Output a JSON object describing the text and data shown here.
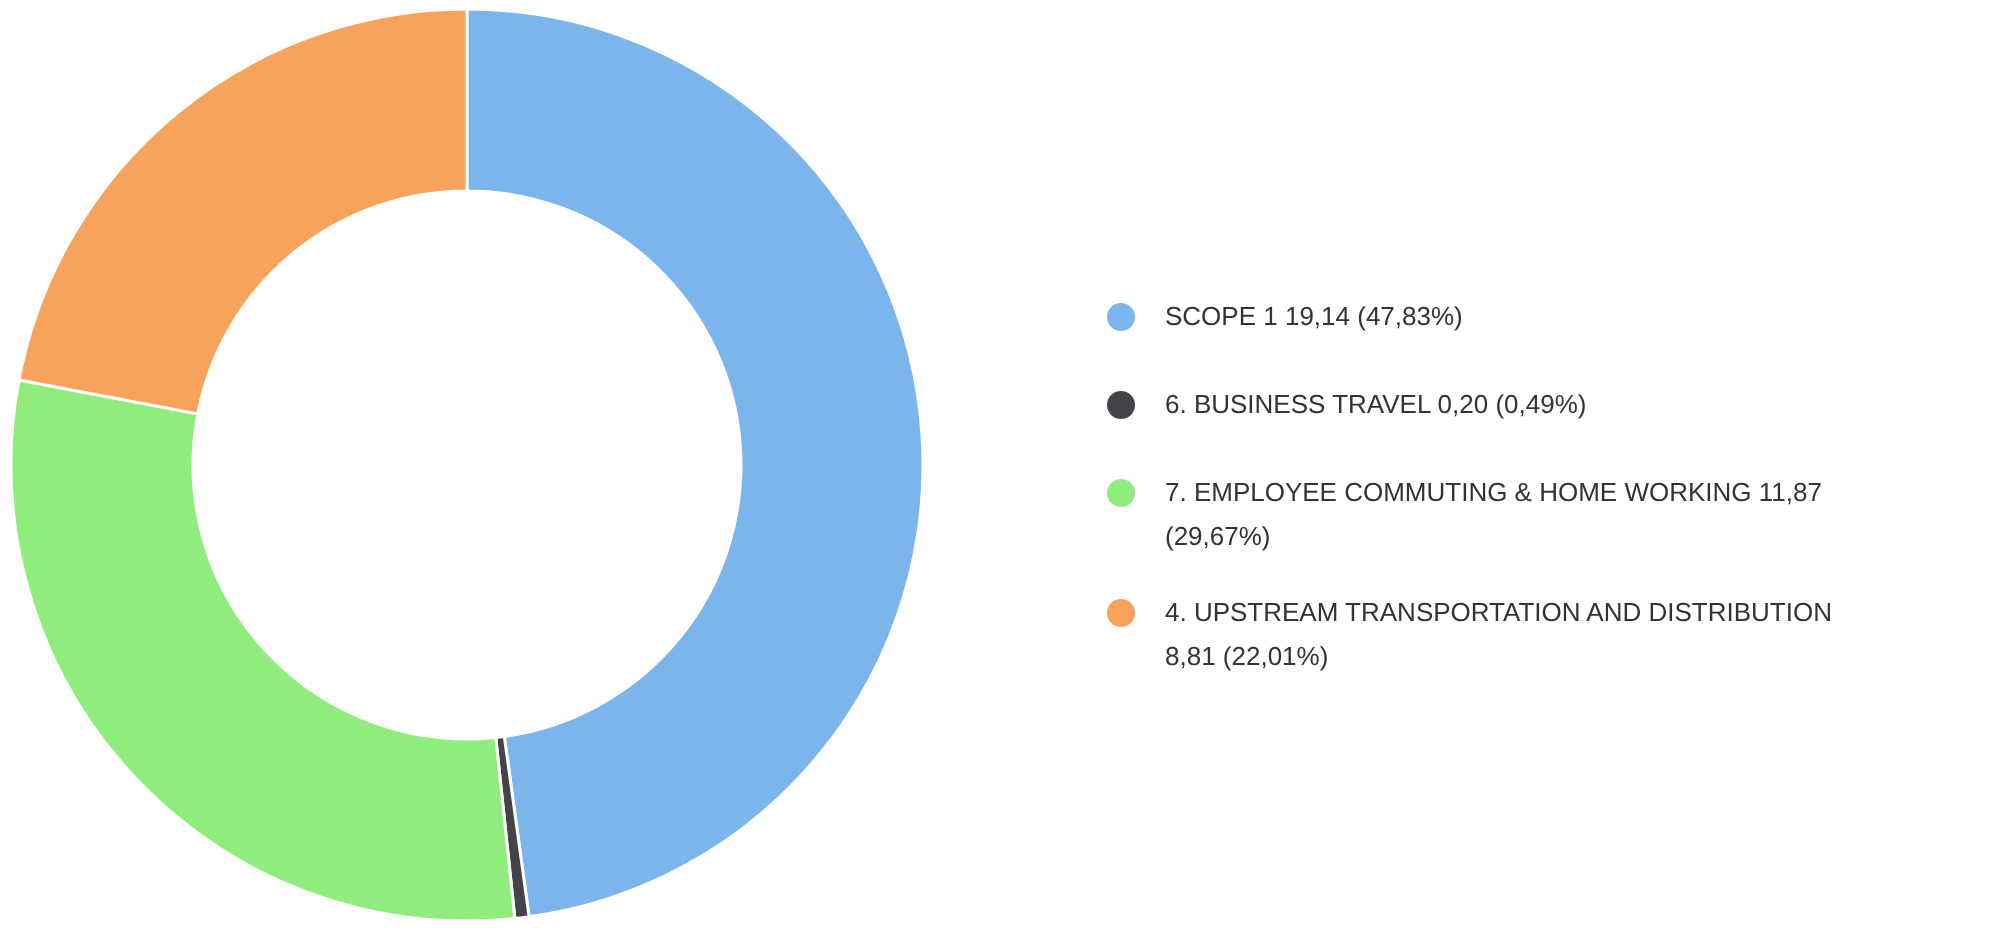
{
  "chart_data": {
    "type": "donut",
    "categories": [
      "SCOPE 1",
      "6. BUSINESS TRAVEL",
      "7. EMPLOYEE COMMUTING & HOME WORKING",
      "4. UPSTREAM TRANSPORTATION AND DISTRIBUTION"
    ],
    "values": [
      19.14,
      0.2,
      11.87,
      8.81
    ],
    "value_labels": [
      "19,14 (47,83%)",
      "0,20 (0,49%)",
      "11,87 (29,67%)",
      "8,81 (22,01%)"
    ],
    "colors": [
      "#7cb5ec",
      "#434348",
      "#90ed7d",
      "#f7a35c"
    ],
    "legend": "right"
  }
}
